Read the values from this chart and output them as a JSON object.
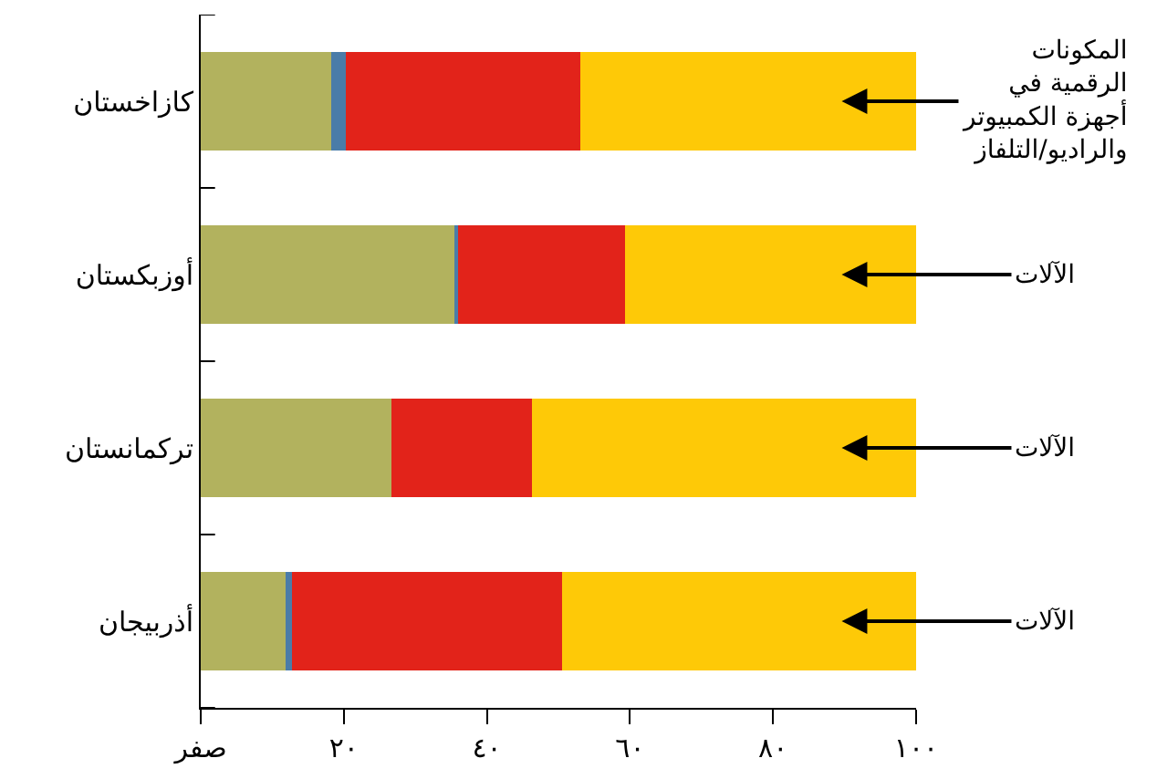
{
  "chart_data": {
    "type": "bar",
    "orientation": "horizontal",
    "stacked": true,
    "categories": [
      "كازاخستان",
      "أوزبكستان",
      "تركمانستان",
      "أذربيجان"
    ],
    "series": [
      {
        "color": "#b2b25e",
        "values": [
          18.2,
          35.6,
          26.7,
          11.8
        ]
      },
      {
        "color": "#4a7ca8",
        "values": [
          2.1,
          0.4,
          0,
          0.9
        ]
      },
      {
        "color": "#e2231a",
        "values": [
          32.7,
          23.3,
          19.6,
          37.8
        ]
      },
      {
        "color": "#fec907",
        "values": [
          47.0,
          40.7,
          53.7,
          49.5
        ]
      }
    ],
    "xlim": [
      0,
      100
    ],
    "xticks": [
      {
        "value": 0,
        "label": "صفر"
      },
      {
        "value": 20,
        "label": "٢٠"
      },
      {
        "value": 40,
        "label": "٤٠"
      },
      {
        "value": 60,
        "label": "٦٠"
      },
      {
        "value": 80,
        "label": "٨٠"
      },
      {
        "value": 100,
        "label": "١٠٠"
      }
    ],
    "grid": false,
    "annotations": [
      "المكونات\nالرقمية في\nأجهزة الكمبيوتر\nوالراديو/التلفاز",
      "الآلات",
      "الآلات",
      "الآلات"
    ]
  }
}
